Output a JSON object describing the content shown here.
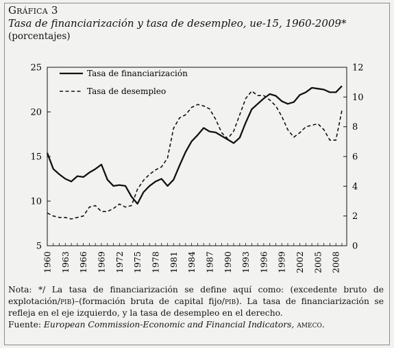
{
  "figure": {
    "label": "Gráfica 3",
    "title": "Tasa de financiarización y tasa de desempleo, ue-15, 1960-2009*",
    "subtitle": "(porcentajes)"
  },
  "notes": {
    "note_prefix": "Nota: */ La tasa de financiarización se define aquí como: (excedente bruto de explotación/",
    "note_pib1": "pib",
    "note_mid": ")–(formación bruta de capital fijo/",
    "note_pib2": "pib",
    "note_suffix": "). La tasa de financiarización se refleja en el eje izquierdo, y la tasa de desempleo en el derecho.",
    "source_prefix": "Fuente: ",
    "source_title": "European Commission-Economic and Financial Indicators",
    "source_sep": ", ",
    "source_name": "ameco",
    "source_end": "."
  },
  "chart_data": {
    "type": "line",
    "x_ticks": [
      1960,
      1963,
      1966,
      1969,
      1972,
      1975,
      1978,
      1981,
      1984,
      1987,
      1990,
      1993,
      1996,
      1999,
      2002,
      2005,
      2008
    ],
    "y_left": {
      "min": 5,
      "max": 25,
      "ticks": [
        5,
        10,
        15,
        20,
        25
      ]
    },
    "y_right": {
      "min": 0,
      "max": 12,
      "ticks": [
        0,
        2,
        4,
        6,
        8,
        10,
        12
      ]
    },
    "legend_position": "top-left",
    "series": [
      {
        "name": "Tasa de financiarización",
        "axis": "left",
        "style": "solid",
        "x": [
          1960,
          1961,
          1962,
          1963,
          1964,
          1965,
          1966,
          1967,
          1968,
          1969,
          1970,
          1971,
          1972,
          1973,
          1974,
          1975,
          1976,
          1977,
          1978,
          1979,
          1980,
          1981,
          1982,
          1983,
          1984,
          1985,
          1986,
          1987,
          1988,
          1989,
          1990,
          1991,
          1992,
          1993,
          1994,
          1995,
          1996,
          1997,
          1998,
          1999,
          2000,
          2001,
          2002,
          2003,
          2004,
          2005,
          2006,
          2007,
          2008,
          2009
        ],
        "values": [
          15.4,
          13.6,
          13.0,
          12.5,
          12.2,
          12.8,
          12.7,
          13.2,
          13.6,
          14.1,
          12.4,
          11.7,
          11.8,
          11.7,
          10.5,
          9.7,
          11.0,
          11.7,
          12.2,
          12.5,
          11.7,
          12.4,
          14.0,
          15.5,
          16.7,
          17.4,
          18.2,
          17.8,
          17.7,
          17.3,
          16.9,
          16.5,
          17.1,
          18.8,
          20.3,
          20.9,
          21.5,
          22.0,
          21.8,
          21.2,
          20.9,
          21.1,
          21.9,
          22.2,
          22.7,
          22.6,
          22.5,
          22.2,
          22.2,
          22.9
        ]
      },
      {
        "name": "Tasa de desempleo",
        "axis": "right",
        "style": "dashed",
        "x": [
          1960,
          1961,
          1962,
          1963,
          1964,
          1965,
          1966,
          1967,
          1968,
          1969,
          1970,
          1971,
          1972,
          1973,
          1974,
          1975,
          1976,
          1977,
          1978,
          1979,
          1980,
          1981,
          1982,
          1983,
          1984,
          1985,
          1986,
          1987,
          1988,
          1989,
          1990,
          1991,
          1992,
          1993,
          1994,
          1995,
          1996,
          1997,
          1998,
          1999,
          2000,
          2001,
          2002,
          2003,
          2004,
          2005,
          2006,
          2007,
          2008,
          2009
        ],
        "values": [
          2.2,
          2.0,
          1.9,
          1.9,
          1.8,
          1.9,
          2.0,
          2.6,
          2.7,
          2.3,
          2.3,
          2.5,
          2.8,
          2.6,
          2.7,
          3.8,
          4.4,
          4.8,
          5.1,
          5.3,
          5.9,
          7.9,
          8.6,
          8.8,
          9.3,
          9.5,
          9.4,
          9.2,
          8.5,
          7.6,
          7.2,
          7.7,
          8.8,
          9.9,
          10.4,
          10.1,
          10.1,
          9.8,
          9.4,
          8.7,
          7.8,
          7.3,
          7.6,
          8.0,
          8.1,
          8.2,
          7.8,
          7.1,
          7.1,
          9.1
        ]
      }
    ]
  }
}
